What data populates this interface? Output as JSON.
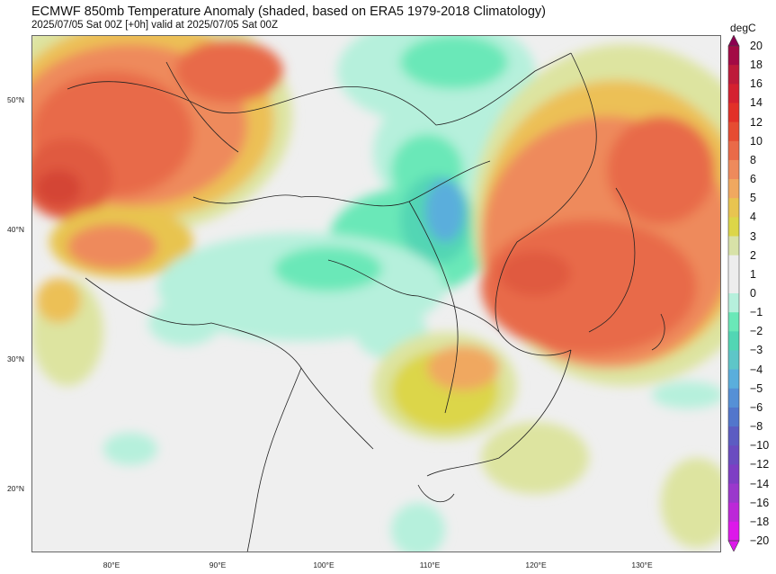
{
  "title": "ECMWF 850mb Temperature Anomaly (shaded, based on ERA5 1979-2018 Climatology)",
  "subtitle": "2025/07/05 Sat 00Z [+0h] valid at 2025/07/05 Sat 00Z",
  "map": {
    "lat_labels": [
      "50°N",
      "40°N",
      "30°N",
      "20°N"
    ],
    "lon_labels": [
      "80°E",
      "90°E",
      "100°E",
      "110°E",
      "120°E",
      "130°E"
    ]
  },
  "colorbar": {
    "unit": "degC",
    "ticks": [
      "20",
      "18",
      "16",
      "14",
      "12",
      "10",
      "8",
      "6",
      "5",
      "4",
      "3",
      "2",
      "1",
      "0",
      "−1",
      "−2",
      "−3",
      "−4",
      "−5",
      "−6",
      "−8",
      "−10",
      "−12",
      "−14",
      "−16",
      "−18",
      "−20"
    ],
    "colors": [
      "#8b0050",
      "#a30a45",
      "#bd1a3a",
      "#d42030",
      "#e23028",
      "#e64c32",
      "#ea6a48",
      "#ee8a5c",
      "#f0a860",
      "#e8c450",
      "#dcd648",
      "#d8e2a8",
      "#ededed",
      "#ededed",
      "#b6f0dc",
      "#6ae8b8",
      "#52d6b4",
      "#5ec6c8",
      "#5aaedc",
      "#5590d6",
      "#5276cc",
      "#5c5cc2",
      "#6a4cc0",
      "#7e3ec4",
      "#9a38cc",
      "#bc28d8",
      "#dd18ea"
    ]
  }
}
